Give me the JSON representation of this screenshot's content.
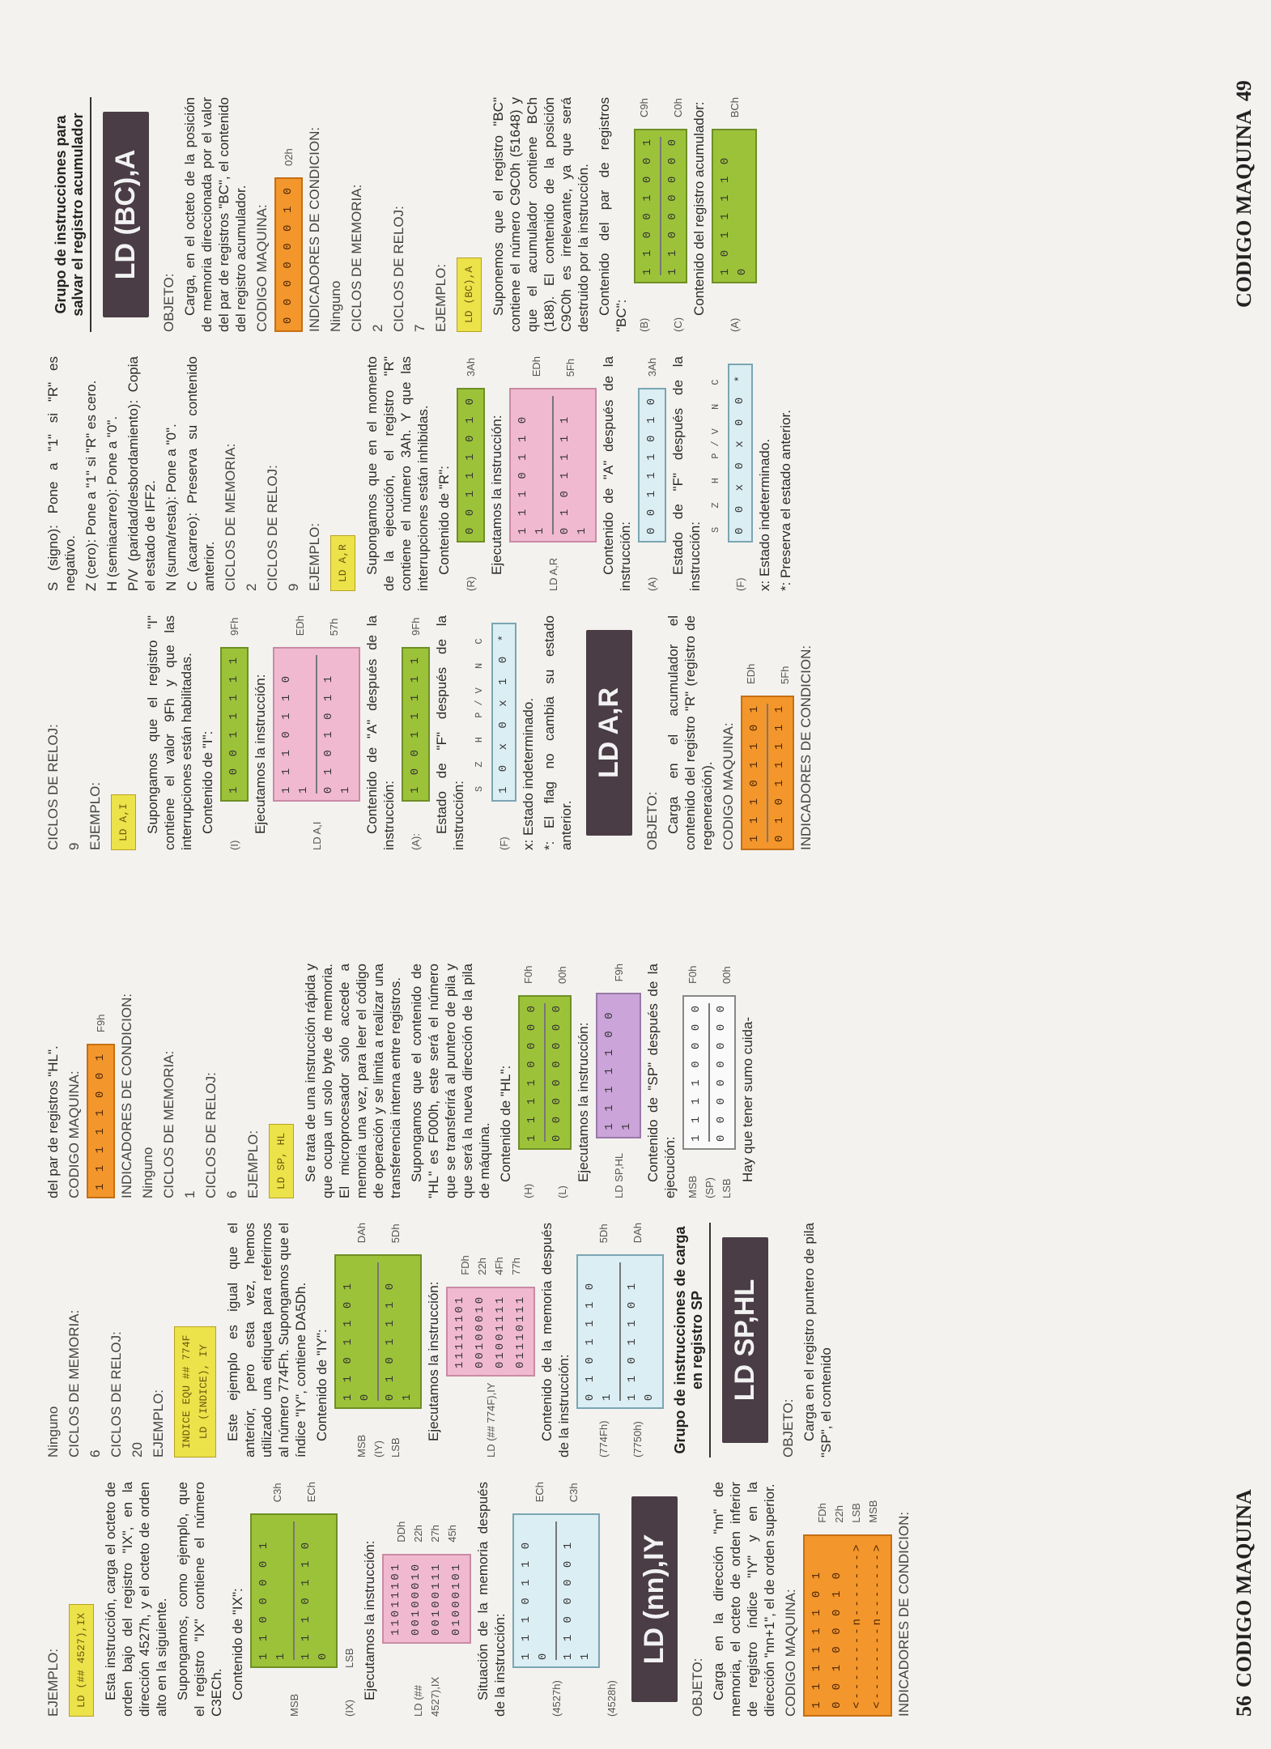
{
  "page_left": {
    "number": "56",
    "label": "CODIGO MAQUINA"
  },
  "page_right": {
    "number": "49",
    "label": "CODIGO MAQUINA"
  },
  "c1": {
    "h_ejemplo": "EJEMPLO:",
    "tag": "LD (## 4527),IX",
    "p1": "Esta instrucción, carga el octeto de orden bajo del registro \"IX\", en la dirección 4527h, y el octeto de orden alto en la siguiente.",
    "p2": "Supongamos, como ejemplo, que el registro \"IX\" contiene el número C3ECh.",
    "p3": "Contenido de \"IX\":",
    "r1": {
      "lab": "MSB",
      "bits": "1 1 0 0 0 0 1 1",
      "hex": "C3h"
    },
    "r2": {
      "lab": "(IX)",
      "bits": "",
      "hex": ""
    },
    "r3": {
      "lab": "LSB",
      "bits": "1 1 1 0 1 1 0 0",
      "hex": "ECh"
    },
    "p4": "Ejecutamos la instrucción:",
    "ex_lab": "LD (## 4527),IX",
    "ex": [
      "11011101",
      "00100010",
      "00100111",
      "01000101"
    ],
    "ex_hex": [
      "DDh",
      "22h",
      "27h",
      "45h"
    ],
    "p5": "Situación de la memoria después de la instrucción:",
    "m1": {
      "lab": "(4527h)",
      "bits": "1 1 1 0 1 1 0 0",
      "hex": "ECh"
    },
    "m2": {
      "lab": "(4528h)",
      "bits": "1 1 0 0 0 0 1 1",
      "hex": "C3h"
    },
    "dark": "LD (nn),IY",
    "h_obj": "OBJETO:",
    "p6": "Carga en la dirección \"nn\" de memoria, el octeto de orden inferior de registro índice \"IY\" y en la dirección \"nn+1\", el de orden superior.",
    "h_cm": "CODIGO MAQUINA:",
    "cm": [
      "1 1 1 1 1 1 0 1",
      "0 0 1 0 0 0 1 0",
      "<--------n------->",
      "<--------n------->"
    ],
    "cm_hex": [
      "FDh",
      "22h",
      "LSB",
      "MSB"
    ],
    "h_ind": "INDICADORES DE CONDICION:"
  },
  "c2": {
    "v_ind": "Ninguno",
    "h_mem": "CICLOS DE MEMORIA:",
    "v_mem": "6",
    "h_rel": "CICLOS DE RELOJ:",
    "v_rel": "20",
    "h_ej": "EJEMPLO:",
    "tag1": "INDICE EQU ## 774F",
    "tag2": "LD (INDICE), IY",
    "p1": "Este ejemplo es igual que el anterior, pero esta vez, hemos utilizado una etiqueta para referirnos al número 774Fh. Supongamos que el índice \"IY\", contiene DA5Dh.",
    "p2": "Contenido de \"IY\":",
    "r1": {
      "lab": "MSB",
      "bits": "1 1 0 1 1 0 1 0",
      "hex": "DAh"
    },
    "r2": {
      "lab": "(IY)",
      "bits": "",
      "hex": ""
    },
    "r3": {
      "lab": "LSB",
      "bits": "0 1 0 1 1 1 0 1",
      "hex": "5Dh"
    },
    "p3": "Ejecutamos la instrucción:",
    "ex_lab": "LD (## 774F),IY",
    "ex": [
      "11111101",
      "00100010",
      "01001111",
      "01110111"
    ],
    "ex_hex": [
      "FDh",
      "22h",
      "4Fh",
      "77h"
    ],
    "p4": "Contenido de la memoria después de la instrucción:",
    "m1": {
      "lab": "(774Fh)",
      "bits": "0 1 0 1 1 1 0 1",
      "hex": "5Dh"
    },
    "m2": {
      "lab": "(7750h)",
      "bits": "1 1 0 1 1 0 1 0",
      "hex": "DAh"
    },
    "title": "Grupo de instrucciones de carga en registro SP",
    "dark": "LD SP,HL",
    "h_obj": "OBJETO:",
    "p5": "Carga en el registro puntero de pila \"SP\", el contenido"
  },
  "c3": {
    "p0": "del par de registros \"HL\".",
    "h_cm": "CODIGO MAQUINA:",
    "cm": "1 1 1 1 1 0 0 1",
    "cm_hex": "F9h",
    "h_ind": "INDICADORES DE CONDICION:",
    "v_ind": "Ninguno",
    "h_mem": "CICLOS DE MEMORIA:",
    "v_mem": "1",
    "h_rel": "CICLOS DE RELOJ:",
    "v_rel": "6",
    "h_ej": "EJEMPLO:",
    "tag": "LD SP, HL",
    "p1": "Se trata de una instrucción rápida y que ocupa un solo byte de memoria. El microprocesador sólo accede a memoria una vez, para leer el código de operación y se limita a realizar una transferencia interna entre registros.",
    "p2": "Supongamos que el contenido de \"HL\" es F000h, este será el número que se transferirá al puntero de pila y que será la nueva dirección de la pila de máquina.",
    "p3": "Contenido de \"HL\":",
    "r1": {
      "lab": "(H)",
      "bits": "1 1 1 1 0 0 0 0",
      "hex": "F0h"
    },
    "r2": {
      "lab": "(L)",
      "bits": "0 0 0 0 0 0 0 0",
      "hex": "00h"
    },
    "p4": "Ejecutamos la instrucción:",
    "ex_lab": "LD SP,HL",
    "ex": "1 1 1 1 1 0 0 1",
    "ex_hex": "F9h",
    "p5": "Contenido de \"SP\" después de la ejecución:",
    "s1": {
      "lab": "MSB",
      "bits": "1 1 1 1 0 0 0 0",
      "hex": "F0h"
    },
    "s2": {
      "lab": "(SP)",
      "bits": "",
      "hex": ""
    },
    "s3": {
      "lab": "LSB",
      "bits": "0 0 0 0 0 0 0 0",
      "hex": "00h"
    },
    "p6": "Hay que tener sumo cuida-"
  },
  "c4": {
    "h_rel": "CICLOS DE RELOJ:",
    "v_rel": "9",
    "h_ej": "EJEMPLO:",
    "tag": "LD A,I",
    "p1": "Supongamos que el registro \"I\" contiene el valor 9Fh y que las interrupciones están habilitadas.",
    "p2": "Contenido de \"I\":",
    "r1": {
      "lab": "(I)",
      "bits": "1 0 0 1 1 1 1 1",
      "hex": "9Fh"
    },
    "p3": "Ejecutamos la instrucción:",
    "ex_lab": "LD A,I",
    "ex": [
      "1 1 1 0 1 1 0 1",
      "0 1 0 1 0 1 1 1"
    ],
    "ex_hex": [
      "EDh",
      "57h"
    ],
    "p4": "Contenido de \"A\" después de la instrucción:",
    "a": {
      "lab": "(A):",
      "bits": "1 0 0 1 1 1 1 1",
      "hex": "9Fh"
    },
    "p5": "Estado de \"F\" después de la instrucción:",
    "fh": "S Z H P/V N C",
    "f": {
      "lab": "(F)",
      "bits": "1 0 x 0 x 1 0 *"
    },
    "n1": "x: Estado indeterminado.",
    "n2": "*: El flag no cambia su estado anterior.",
    "dark": "LD A,R",
    "h_obj": "OBJETO:",
    "p6": "Carga en el acumulador el contenido del registro \"R\" (registro de regeneración).",
    "h_cm": "CODIGO MAQUINA:",
    "cm": [
      "1 1 1 0 1 1 0 1",
      "0 1 0 1 1 1 1 1"
    ],
    "cm_hex": [
      "EDh",
      "5Fh"
    ],
    "h_ind": "INDICADORES DE CONDICION:"
  },
  "c5": {
    "p0": "S (signo): Pone a \"1\" si \"R\" es negativo.",
    "p1": "Z (cero): Pone a \"1\" si \"R\" es cero.",
    "p2": "H (semiacarreo): Pone a \"0\".",
    "p3": "P/V (paridad/desbordamiento): Copia el estado de IFF2.",
    "p4": "N (suma/resta): Pone a \"0\".",
    "p5": "C (acarreo): Preserva su contenido anterior.",
    "h_mem": "CICLOS DE MEMORIA:",
    "v_mem": "2",
    "h_rel": "CICLOS DE RELOJ:",
    "v_rel": "9",
    "h_ej": "EJEMPLO:",
    "tag": "LD A,R",
    "p6": "Supongamos que en el momento de la ejecución, el registro \"R\" contiene el número 3Ah. Y que las interrupciones están inhibidas.",
    "p7": "Contenido de \"R\":",
    "r1": {
      "lab": "(R)",
      "bits": "0 0 1 1 1 0 1 0",
      "hex": "3Ah"
    },
    "p8": "Ejecutamos la instrucción:",
    "ex_lab": "LD A,R",
    "ex": [
      "1 1 1 0 1 1 0 1",
      "0 1 0 1 1 1 1 1"
    ],
    "ex_hex": [
      "EDh",
      "5Fh"
    ],
    "p9": "Contenido de \"A\" después de la instrucción:",
    "a": {
      "lab": "(A)",
      "bits": "0 0 1 1 1 0 1 0",
      "hex": "3Ah"
    },
    "p10": "Estado de \"F\" después de la instrucción:",
    "fh": "S Z H P/V N C",
    "f": {
      "lab": "(F)",
      "bits": "0 0 x 0 x 0 0 *"
    },
    "n1": "x: Estado indeterminado.",
    "n2": "*: Preserva el estado anterior."
  },
  "c6": {
    "title": "Grupo de instrucciones para salvar el registro acumulador",
    "dark": "LD (BC),A",
    "h_obj": "OBJETO:",
    "p1": "Carga, en el octeto de la posición de memoria direccionada por el valor del par de registros \"BC\", el contenido del registro acumulador.",
    "h_cm": "CODIGO MAQUINA:",
    "cm": "0 0 0 0 0 0 1 0",
    "cm_hex": "02h",
    "h_ind": "INDICADORES DE CONDICION:",
    "v_ind": "Ninguno",
    "h_mem": "CICLOS DE MEMORIA:",
    "v_mem": "2",
    "h_rel": "CICLOS DE RELOJ:",
    "v_rel": "7",
    "h_ej": "EJEMPLO:",
    "tag": "LD (BC),A",
    "p2": "Suponemos que el registro \"BC\" contiene el número C9C0h (51648) y que el acumulador contiene BCh (188). El contenido de la posición C9C0h es irrelevante, ya que será destruido por la instrucción.",
    "p3": "Contenido del par de registros \"BC\":",
    "r1": {
      "lab": "(B)",
      "bits": "1 1 0 0 1 0 0 1",
      "hex": "C9h"
    },
    "r2": {
      "lab": "(C)",
      "bits": "1 1 0 0 0 0 0 0",
      "hex": "C0h"
    },
    "p4": "Contenido del registro acumulador:",
    "a": {
      "lab": "(A)",
      "bits": "1 0 1 1 1 1 0 0",
      "hex": "BCh"
    }
  }
}
